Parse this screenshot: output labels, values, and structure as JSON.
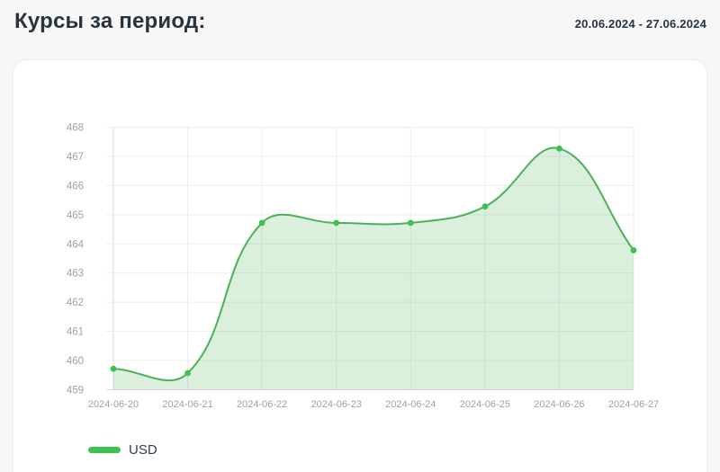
{
  "header": {
    "title": "Курсы за период:",
    "period": "20.06.2024 - 27.06.2024"
  },
  "legend": {
    "items": [
      {
        "label": "USD",
        "color": "#3ec24e"
      }
    ]
  },
  "chart_data": {
    "type": "area",
    "title": "",
    "xlabel": "",
    "ylabel": "",
    "categories": [
      "2024-06-20",
      "2024-06-21",
      "2024-06-22",
      "2024-06-23",
      "2024-06-24",
      "2024-06-25",
      "2024-06-26",
      "2024-06-27"
    ],
    "series": [
      {
        "name": "USD",
        "values": [
          459.72,
          459.57,
          464.72,
          464.72,
          464.72,
          465.28,
          467.27,
          463.78
        ]
      }
    ],
    "ylim": [
      459,
      468
    ],
    "ytick_step": 1,
    "grid": true,
    "legend_position": "bottom",
    "smoothing": "cubic-bezier-tension-0.4",
    "colors": {
      "line": "#4cb158",
      "marker": "#3ec24e",
      "area_fill": "rgba(76,177,86,0.2)",
      "grid": "#ededee",
      "axis": "#d8dadd",
      "tick_label": "#9aa2ab"
    }
  }
}
